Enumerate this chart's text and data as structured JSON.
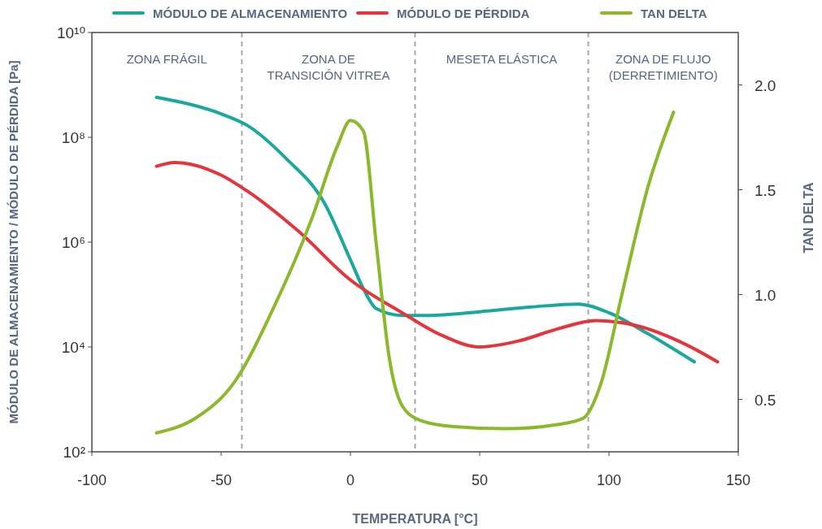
{
  "chart_data": {
    "type": "line",
    "xlabel": "TEMPERATURA [°C]",
    "ylabel": "MÓDULO DE ALMACENAMIENTO / MÓDULO DE PÉRDIDA [Pa]",
    "y2label": "TAN DELTA",
    "log": "y",
    "xlim": [
      -100,
      150
    ],
    "xticks": [
      -100,
      -50,
      0,
      50,
      100,
      150
    ],
    "ylim": [
      100,
      10000000000
    ],
    "yticks": [
      {
        "value": 100,
        "label": "10²"
      },
      {
        "value": 10000,
        "label": "10⁴"
      },
      {
        "value": 1000000,
        "label": "10⁶"
      },
      {
        "value": 100000000,
        "label": "10⁸"
      },
      {
        "value": 10000000000,
        "label": "10¹⁰"
      }
    ],
    "y2lim": [
      0.25,
      2.25
    ],
    "y2ticks": [
      0.5,
      {
        "value": 1,
        "label": "1.0"
      },
      1.5,
      {
        "value": 2,
        "label": "2.0"
      }
    ],
    "grid": false,
    "legend": "top",
    "marker": "none",
    "line_style": "solid",
    "series": [
      {
        "name": "MÓDULO DE ALMACENAMIENTO",
        "color": "#1aa89c",
        "x": [
          -75,
          -50,
          -40,
          -25,
          -10,
          0,
          5,
          10,
          20,
          30,
          50,
          70,
          88,
          100,
          115,
          133
        ],
        "values": [
          580000000,
          280000000,
          170000000,
          40000000,
          5500000,
          460000,
          130000,
          54000,
          40000,
          40000,
          47000,
          58000,
          66000,
          45000,
          18000,
          5200
        ]
      },
      {
        "name": "MÓDULO DE PÉRDIDA",
        "color": "#e5343c",
        "x": [
          -75,
          -68,
          -50,
          -40,
          -20,
          0,
          20,
          35,
          50,
          65,
          80,
          95,
          110,
          130,
          142
        ],
        "values": [
          28000000,
          33000000,
          19000000,
          9500000,
          1600000,
          190000,
          45000,
          17000,
          10000,
          13000,
          22000,
          32000,
          26000,
          11000,
          5200
        ]
      },
      {
        "name": "TAN DELTA",
        "color": "#8cb82b",
        "axis": "y2",
        "x": [
          -75,
          -60,
          -45,
          -30,
          -15,
          -5,
          0,
          5,
          10,
          15,
          20,
          27,
          40,
          60,
          80,
          90,
          97,
          105,
          115,
          125
        ],
        "values": [
          0.34,
          0.41,
          0.58,
          0.93,
          1.36,
          1.71,
          1.83,
          1.78,
          1.24,
          0.7,
          0.47,
          0.4,
          0.37,
          0.36,
          0.38,
          0.41,
          0.58,
          1.0,
          1.51,
          1.87
        ]
      }
    ],
    "ref_lines": [
      {
        "axis": "x",
        "value": -42,
        "color": "#aaaaaa",
        "line_style": "dashed"
      },
      {
        "axis": "x",
        "value": 25,
        "color": "#aaaaaa",
        "line_style": "dashed"
      },
      {
        "axis": "x",
        "value": 92,
        "color": "#aaaaaa",
        "line_style": "dashed"
      }
    ],
    "annotations": [
      "ZONA FRÁGIL",
      "ZONA DE\nTRANSICIÓN VITREA",
      "MESETA ELÁSTICA",
      "ZONA DE FLUJO\n(DERRETIMIENTO)"
    ]
  }
}
